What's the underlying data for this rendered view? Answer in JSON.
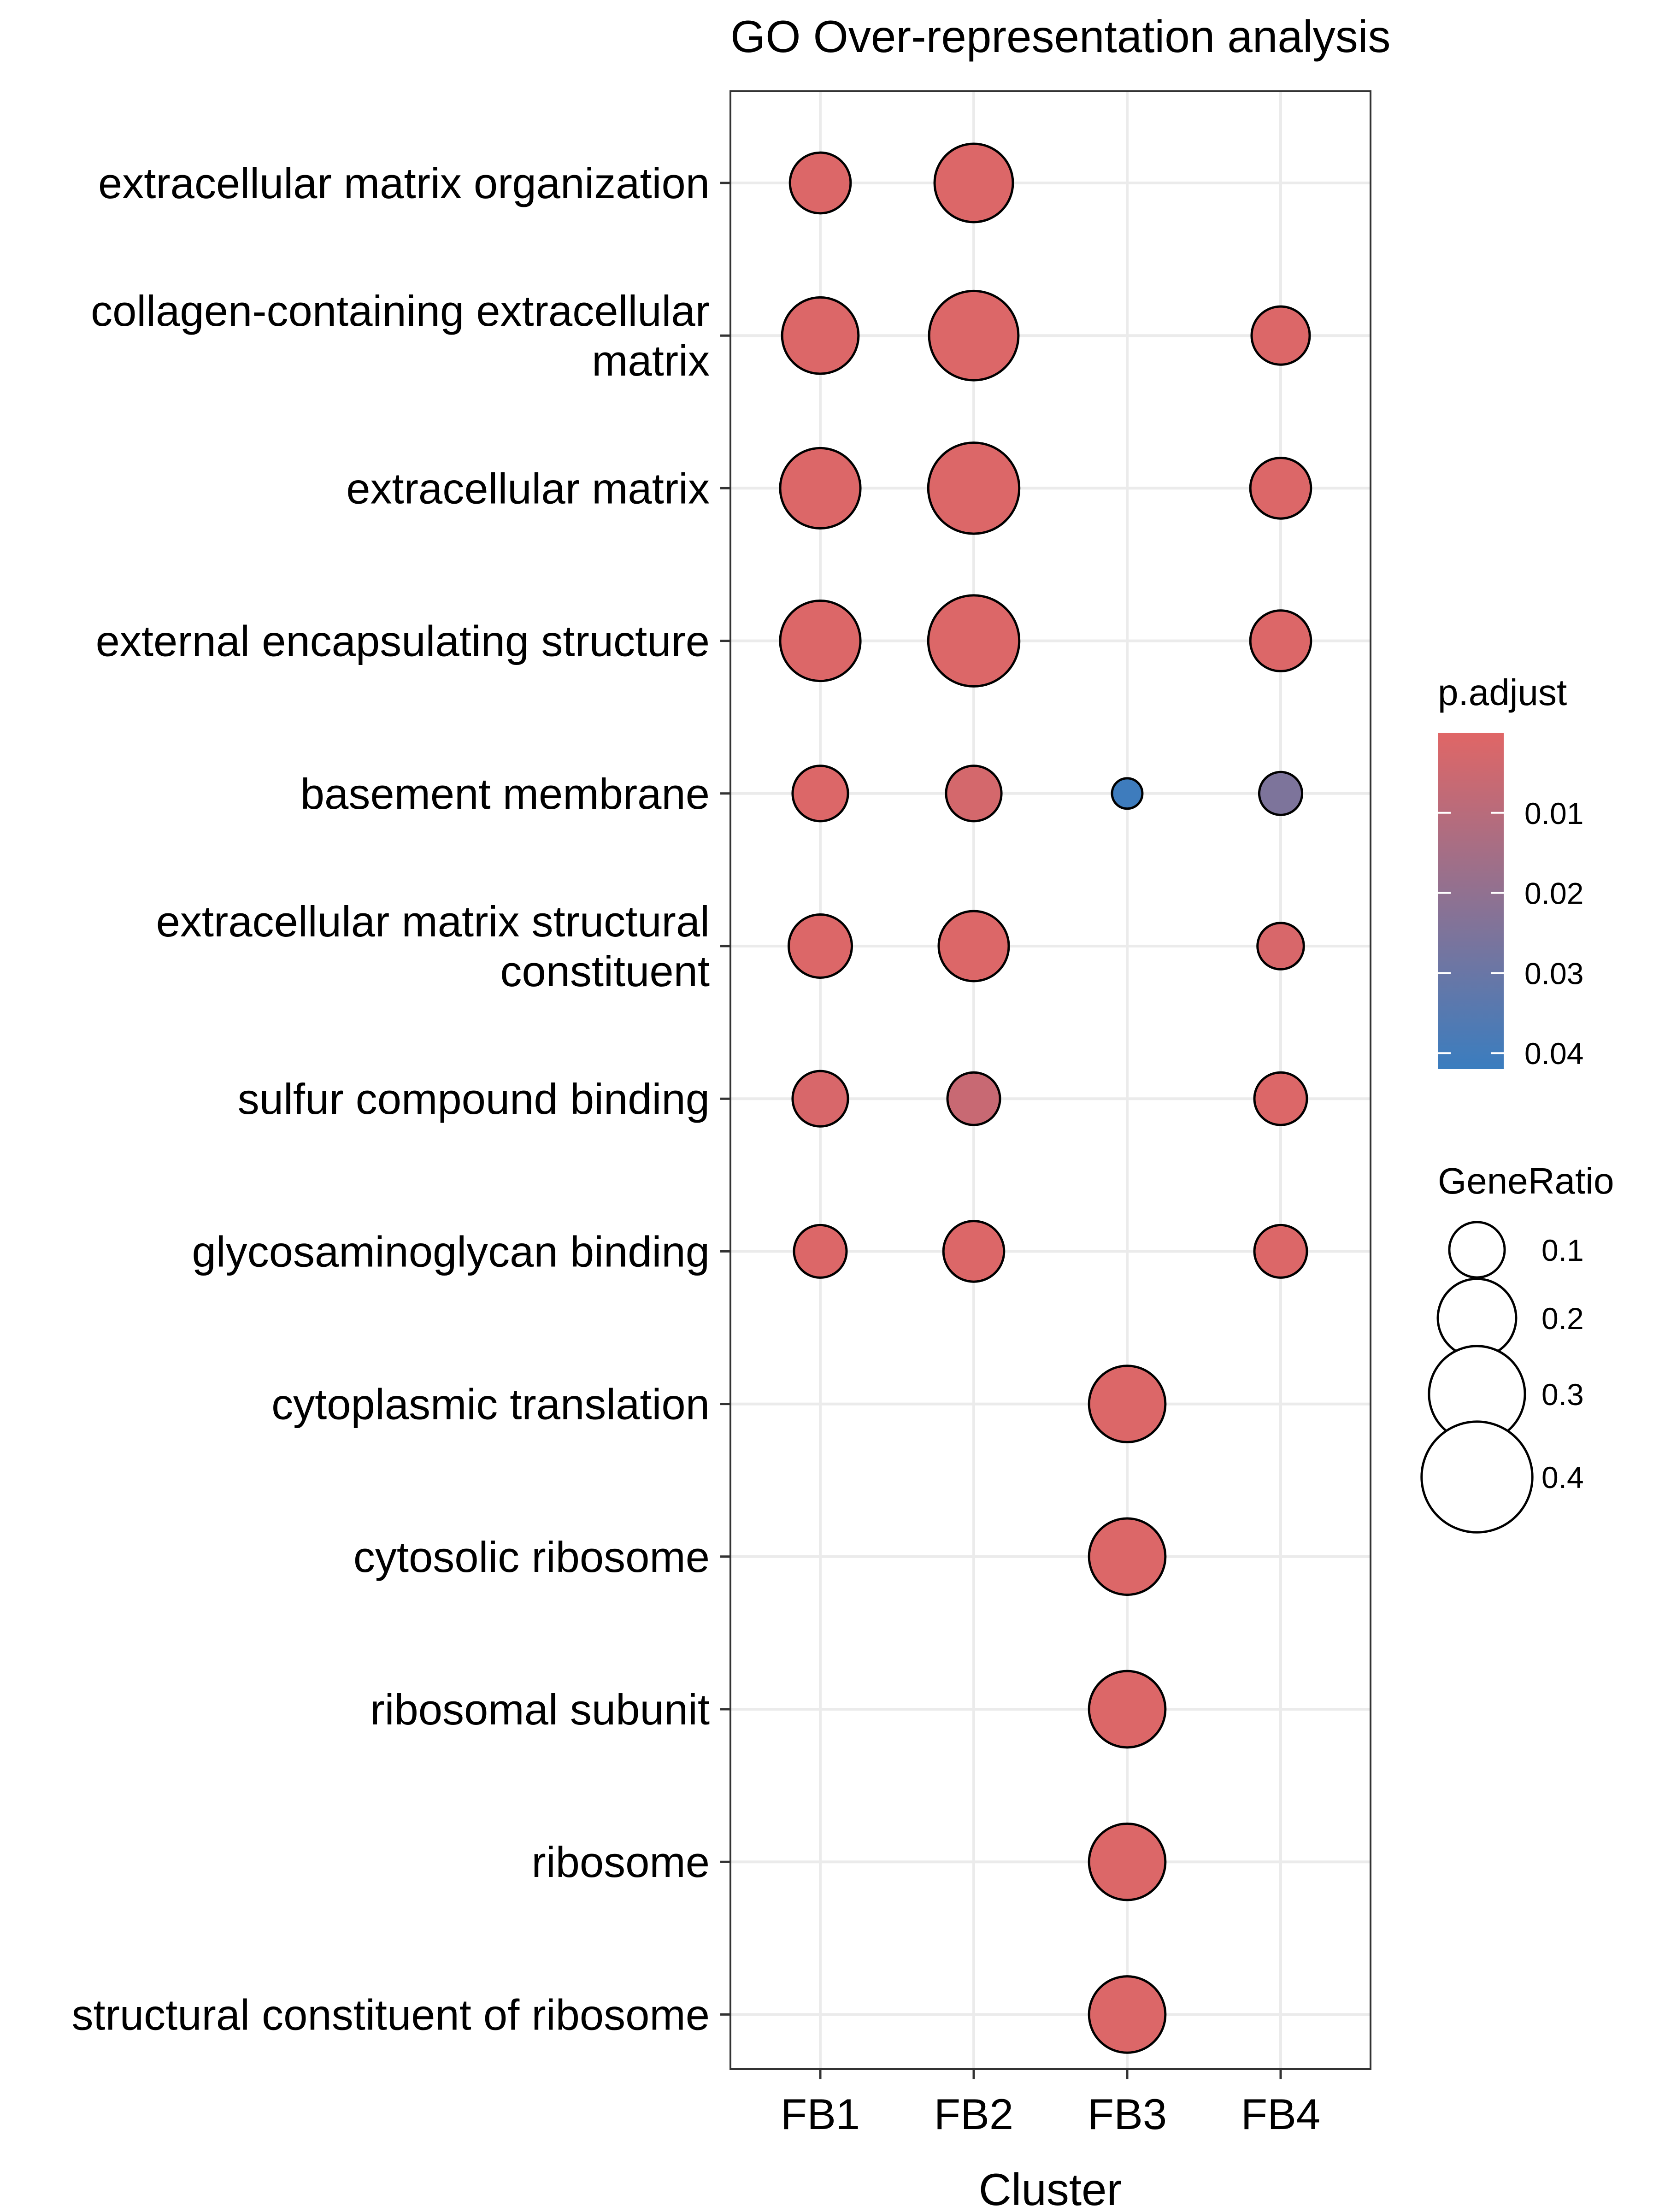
{
  "chart_data": {
    "type": "scatter",
    "title": "GO Over-representation analysis",
    "xlabel": "Cluster",
    "ylabel": "",
    "categories": [
      "FB1",
      "FB2",
      "FB3",
      "FB4"
    ],
    "terms": [
      [
        "extracellular matrix organization"
      ],
      [
        "collagen-containing extracellular",
        "matrix"
      ],
      [
        "extracellular matrix"
      ],
      [
        "external encapsulating structure"
      ],
      [
        "basement membrane"
      ],
      [
        "extracellular matrix structural",
        "constituent"
      ],
      [
        "sulfur compound binding"
      ],
      [
        "glycosaminoglycan binding"
      ],
      [
        "cytoplasmic translation"
      ],
      [
        "cytosolic ribosome"
      ],
      [
        "ribosomal subunit"
      ],
      [
        "ribosome"
      ],
      [
        "structural constituent of ribosome"
      ]
    ],
    "points": [
      {
        "cluster": "FB1",
        "term": 0,
        "gene_ratio": 0.12,
        "p_adjust": 0.001
      },
      {
        "cluster": "FB2",
        "term": 0,
        "gene_ratio": 0.2,
        "p_adjust": 0.001
      },
      {
        "cluster": "FB1",
        "term": 1,
        "gene_ratio": 0.19,
        "p_adjust": 0.001
      },
      {
        "cluster": "FB2",
        "term": 1,
        "gene_ratio": 0.26,
        "p_adjust": 0.001
      },
      {
        "cluster": "FB4",
        "term": 1,
        "gene_ratio": 0.11,
        "p_adjust": 0.001
      },
      {
        "cluster": "FB1",
        "term": 2,
        "gene_ratio": 0.21,
        "p_adjust": 0.001
      },
      {
        "cluster": "FB2",
        "term": 2,
        "gene_ratio": 0.27,
        "p_adjust": 0.001
      },
      {
        "cluster": "FB4",
        "term": 2,
        "gene_ratio": 0.12,
        "p_adjust": 0.001
      },
      {
        "cluster": "FB1",
        "term": 3,
        "gene_ratio": 0.21,
        "p_adjust": 0.001
      },
      {
        "cluster": "FB2",
        "term": 3,
        "gene_ratio": 0.27,
        "p_adjust": 0.001
      },
      {
        "cluster": "FB4",
        "term": 3,
        "gene_ratio": 0.12,
        "p_adjust": 0.001
      },
      {
        "cluster": "FB1",
        "term": 4,
        "gene_ratio": 0.1,
        "p_adjust": 0.001
      },
      {
        "cluster": "FB2",
        "term": 4,
        "gene_ratio": 0.1,
        "p_adjust": 0.003
      },
      {
        "cluster": "FB3",
        "term": 4,
        "gene_ratio": 0.03,
        "p_adjust": 0.041
      },
      {
        "cluster": "FB4",
        "term": 4,
        "gene_ratio": 0.06,
        "p_adjust": 0.025
      },
      {
        "cluster": "FB1",
        "term": 5,
        "gene_ratio": 0.13,
        "p_adjust": 0.001
      },
      {
        "cluster": "FB2",
        "term": 5,
        "gene_ratio": 0.16,
        "p_adjust": 0.001
      },
      {
        "cluster": "FB4",
        "term": 5,
        "gene_ratio": 0.07,
        "p_adjust": 0.002
      },
      {
        "cluster": "FB1",
        "term": 6,
        "gene_ratio": 0.1,
        "p_adjust": 0.002
      },
      {
        "cluster": "FB2",
        "term": 6,
        "gene_ratio": 0.09,
        "p_adjust": 0.006
      },
      {
        "cluster": "FB4",
        "term": 6,
        "gene_ratio": 0.09,
        "p_adjust": 0.001
      },
      {
        "cluster": "FB1",
        "term": 7,
        "gene_ratio": 0.09,
        "p_adjust": 0.001
      },
      {
        "cluster": "FB2",
        "term": 7,
        "gene_ratio": 0.12,
        "p_adjust": 0.001
      },
      {
        "cluster": "FB4",
        "term": 7,
        "gene_ratio": 0.09,
        "p_adjust": 0.001
      },
      {
        "cluster": "FB3",
        "term": 8,
        "gene_ratio": 0.19,
        "p_adjust": 0.001
      },
      {
        "cluster": "FB3",
        "term": 9,
        "gene_ratio": 0.19,
        "p_adjust": 0.001
      },
      {
        "cluster": "FB3",
        "term": 10,
        "gene_ratio": 0.19,
        "p_adjust": 0.001
      },
      {
        "cluster": "FB3",
        "term": 11,
        "gene_ratio": 0.19,
        "p_adjust": 0.001
      },
      {
        "cluster": "FB3",
        "term": 12,
        "gene_ratio": 0.19,
        "p_adjust": 0.001
      }
    ],
    "color_scale": {
      "title": "p.adjust",
      "low_color": "#E06666",
      "high_color": "#3A7DBF",
      "ticks": [
        0.01,
        0.02,
        0.03,
        0.04
      ],
      "tick_labels": [
        "0.01",
        "0.02",
        "0.03",
        "0.04"
      ],
      "range": [
        0.0,
        0.042
      ]
    },
    "size_scale": {
      "title": "GeneRatio",
      "breaks": [
        0.1,
        0.2,
        0.3,
        0.4
      ],
      "labels": [
        "0.1",
        "0.2",
        "0.3",
        "0.4"
      ]
    },
    "grid": true,
    "legend_position": "right"
  }
}
